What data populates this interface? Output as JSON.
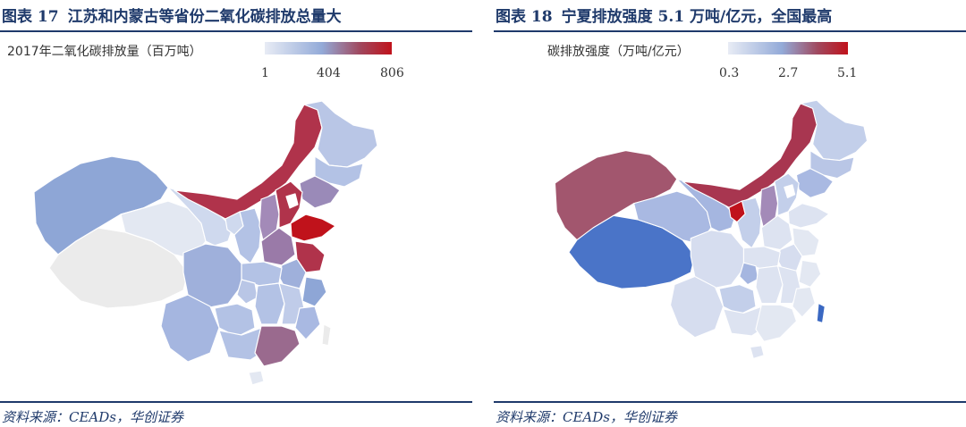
{
  "left_panel": {
    "figure_label": "图表 17",
    "title": "江苏和内蒙古等省份二氧化碳排放总量大",
    "legend_title": "2017年二氧化碳排放量（百万吨）",
    "legend_ticks": [
      "1",
      "404",
      "806"
    ],
    "source": "资料来源：CEADs，华创证券",
    "colors": {
      "low": "#e8ecf5",
      "mid": "#93aad8",
      "high": "#c0121b"
    }
  },
  "right_panel": {
    "figure_label": "图表 18",
    "title": "宁夏排放强度 5.1 万吨/亿元，全国最高",
    "legend_title": "碳排放强度（万吨/亿元）",
    "legend_ticks": [
      "0.3",
      "2.7",
      "5.1"
    ],
    "source": "资料来源：CEADs，华创证券",
    "colors": {
      "low": "#e8ecf5",
      "mid": "#93aad8",
      "high": "#c0121b"
    }
  }
}
